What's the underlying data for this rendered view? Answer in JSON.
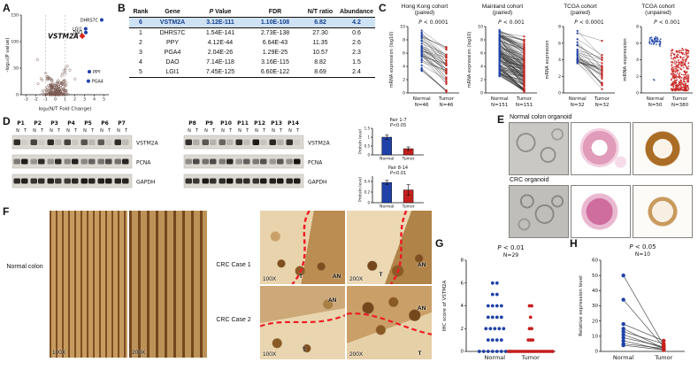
{
  "colors": {
    "normal": "#1f41a8",
    "tumor": "#c5201d",
    "highlight_row_bg": "#cfe2f4",
    "accent_red": "#e02318",
    "dashed_line": "#ed1c24"
  },
  "panels": {
    "a": "A",
    "b": "B",
    "c": "C",
    "d": "D",
    "e": "E",
    "f": "F",
    "g": "G",
    "h": "H"
  },
  "table": {
    "columns": [
      "Rank",
      "Gene",
      "P Value",
      "FDR",
      "N/T ratio",
      "Abundance"
    ],
    "rows": [
      {
        "rank": "6",
        "gene": "VSTM2A",
        "p": "3.12E-111",
        "fdr": "1.10E-108",
        "ratio": "6.82",
        "abundance": "4.2",
        "highlight": true
      },
      {
        "rank": "1",
        "gene": "DHRS7C",
        "p": "1.54E-141",
        "fdr": "2.73E-138",
        "ratio": "27.30",
        "abundance": "0.6",
        "highlight": false
      },
      {
        "rank": "2",
        "gene": "PPY",
        "p": "4.12E-44",
        "fdr": "6.64E-43",
        "ratio": "11.35",
        "abundance": "2.6",
        "highlight": false
      },
      {
        "rank": "3",
        "gene": "PGA4",
        "p": "2.04E-26",
        "fdr": "1.29E-25",
        "ratio": "10.57",
        "abundance": "2.3",
        "highlight": false
      },
      {
        "rank": "4",
        "gene": "DAO",
        "p": "7.14E-118",
        "fdr": "3.16E-115",
        "ratio": "8.82",
        "abundance": "1.5",
        "highlight": false
      },
      {
        "rank": "5",
        "gene": "LGI1",
        "p": "7.45E-125",
        "fdr": "6.60E-122",
        "ratio": "8.69",
        "abundance": "2.4",
        "highlight": false
      }
    ]
  },
  "chart_data": [
    {
      "id": "volcano",
      "type": "volcano",
      "panel": "A",
      "xlabel": "log₂(N/T Fold Change)",
      "ylabel": "-log₁₀(P value)",
      "xlim": [
        -3.5,
        5.5
      ],
      "ylim": [
        0,
        150
      ],
      "xticks": [
        -3,
        -2,
        -1,
        0,
        1,
        2,
        3,
        4,
        5
      ],
      "yticks": [
        0,
        50,
        100,
        150
      ],
      "vlines": [
        -1,
        1
      ],
      "labeled_points": [
        {
          "gene": "DHRS7C",
          "x": 4.77,
          "y": 140.8,
          "color": "#1f41a8",
          "side": "left",
          "marker": "circle",
          "emphasis": false
        },
        {
          "gene": "LGI1",
          "x": 3.12,
          "y": 124.1,
          "color": "#1f41a8",
          "side": "left",
          "marker": "circle",
          "emphasis": false
        },
        {
          "gene": "DAO",
          "x": 3.14,
          "y": 117.1,
          "color": "#1f41a8",
          "side": "left",
          "marker": "circle",
          "emphasis": false
        },
        {
          "gene": "VSTM2A",
          "x": 2.77,
          "y": 110.5,
          "color": "#e02318",
          "side": "left",
          "marker": "diamond",
          "emphasis": true
        },
        {
          "gene": "PPY",
          "x": 3.5,
          "y": 43.4,
          "color": "#1f41a8",
          "side": "right",
          "marker": "circle",
          "emphasis": false
        },
        {
          "gene": "PGA4",
          "x": 3.4,
          "y": 25.7,
          "color": "#1f41a8",
          "side": "right",
          "marker": "circle",
          "emphasis": false
        }
      ],
      "cloud": {
        "n": 240,
        "seed": 7
      }
    },
    {
      "id": "c1",
      "type": "paired",
      "panel": "C",
      "title_lines": [
        "Hong Kong cohort",
        "(paired)"
      ],
      "p_label": "P < 0.0001",
      "ylabel": "mRNA expression (log10)",
      "ylim": [
        0,
        10
      ],
      "yticks": [
        0,
        2,
        4,
        6,
        8,
        10
      ],
      "groups": [
        "Normal",
        "Tumor"
      ],
      "n_labels": [
        "N=46",
        "N=46"
      ],
      "n": 46,
      "seed": 11,
      "normal_range": [
        3,
        9.5
      ],
      "drop_range": [
        1,
        5
      ]
    },
    {
      "id": "c2",
      "type": "paired",
      "panel": "C",
      "title_lines": [
        "Mainland cohort",
        "(paired)"
      ],
      "p_label": "P < 0.001",
      "ylabel": "mRNA expression (log10)",
      "ylim": [
        0,
        10
      ],
      "yticks": [
        0,
        2,
        4,
        6,
        8,
        10
      ],
      "groups": [
        "Normal",
        "Tumor"
      ],
      "n_labels": [
        "N=151",
        "N=151"
      ],
      "n": 151,
      "seed": 12,
      "normal_range": [
        2.5,
        9.5
      ],
      "drop_range": [
        0.5,
        5
      ]
    },
    {
      "id": "c3",
      "type": "paired",
      "panel": "C",
      "title_lines": [
        "TCGA cohort",
        "(paired)"
      ],
      "p_label": "P < 0.0001",
      "ylabel": "mRNA expression",
      "ylim": [
        0,
        8
      ],
      "yticks": [
        0,
        2,
        4,
        6,
        8
      ],
      "groups": [
        "Normal",
        "Tumor"
      ],
      "n_labels": [
        "N=32",
        "N=32"
      ],
      "n": 32,
      "seed": 13,
      "normal_range": [
        3.5,
        7.5
      ],
      "drop_range": [
        0.5,
        4
      ]
    },
    {
      "id": "c4",
      "type": "unpaired",
      "panel": "C",
      "title_lines": [
        "TCGA cohort",
        "(unpaired)"
      ],
      "p_label": "P < 0.001",
      "ylabel": "mRNA expression",
      "ylim": [
        0,
        8
      ],
      "yticks": [
        0,
        2,
        4,
        6,
        8
      ],
      "groups": [
        "Normal",
        "Tumor"
      ],
      "n_labels": [
        "N=50",
        "N=380"
      ],
      "counts": [
        50,
        380
      ],
      "seed": 14
    },
    {
      "id": "bar0",
      "type": "bars",
      "panel": "D",
      "title_lines": [
        "Pair 1-7",
        "P<0.05"
      ],
      "ylabel": "Protein level",
      "categories": [
        "Normal",
        "Tumor"
      ],
      "values": [
        1.0,
        0.35
      ],
      "errors": [
        0.13,
        0.1
      ],
      "ylim": [
        0,
        1.5
      ],
      "yticks": [
        0,
        0.5,
        1,
        1.5
      ]
    },
    {
      "id": "bar1",
      "type": "bars",
      "panel": "D",
      "title_lines": [
        "Pair 8-14",
        "P<0.01"
      ],
      "ylabel": "Protein level",
      "categories": [
        "Normal",
        "Tumor"
      ],
      "values": [
        0.38,
        0.24
      ],
      "errors": [
        0.04,
        0.1
      ],
      "ylim": [
        0,
        0.5
      ],
      "yticks": [
        0,
        0.2,
        0.4
      ]
    },
    {
      "id": "gplot",
      "type": "dots",
      "panel": "G",
      "p_label": "P < 0.01",
      "n_label": "N=29",
      "ylabel": "IHC score of VSTM2A",
      "ylim": [
        0,
        8
      ],
      "yticks": [
        0,
        2,
        4,
        6,
        8
      ],
      "groups": [
        {
          "label": "Normal",
          "color": "#1f41a8",
          "spacing": 5,
          "values": [
            6,
            6,
            5,
            5,
            4,
            4,
            4,
            4,
            3,
            3,
            3,
            3,
            2,
            2,
            2,
            2,
            2,
            1,
            1,
            1,
            1,
            0,
            0,
            0,
            0,
            0,
            0,
            0,
            0
          ]
        },
        {
          "label": "Tumor",
          "color": "#c5201d",
          "spacing": 2.5,
          "values": [
            4,
            4,
            3,
            2,
            2,
            1,
            1,
            1,
            0,
            0,
            0,
            0,
            0,
            0,
            0,
            0,
            0,
            0,
            0,
            0,
            0,
            0,
            0,
            0,
            0,
            0,
            0,
            0,
            0
          ]
        }
      ]
    },
    {
      "id": "hplot",
      "type": "paired",
      "panel": "H",
      "p_label": "P < 0.05",
      "n_label": "N=10",
      "ylabel": "Relative expression level",
      "ylim": [
        0,
        60
      ],
      "yticks": [
        0,
        10,
        20,
        30,
        40,
        50,
        60
      ],
      "groups": [
        "Normal",
        "Tumor"
      ],
      "values": {
        "normal": [
          50,
          34,
          18,
          15,
          13,
          11,
          9,
          7,
          5,
          4
        ],
        "tumor": [
          4,
          3,
          7,
          2,
          5,
          2,
          3,
          1,
          2,
          1
        ]
      }
    }
  ],
  "western": {
    "row_labels": [
      "VSTM2A",
      "PCNA",
      "GAPDH"
    ],
    "lane_labels": [
      "N",
      "T"
    ],
    "groups": [
      {
        "id": "blot0",
        "pairs": [
          "P1",
          "P2",
          "P3",
          "P4",
          "P5",
          "P6",
          "P7"
        ],
        "seed": 3
      },
      {
        "id": "blot1",
        "pairs": [
          "P8",
          "P9",
          "P10",
          "P11",
          "P12",
          "P13",
          "P14"
        ],
        "seed": 5
      }
    ]
  },
  "organoids": {
    "rows": [
      {
        "label": "Normal colon organoid"
      },
      {
        "label": "CRC organoid"
      }
    ]
  },
  "ihc": {
    "normal_label": "Normal colon",
    "normal_images": [
      {
        "mag": "100X"
      },
      {
        "mag": "200X"
      }
    ],
    "cases": [
      {
        "label": "CRC Case 1",
        "images": [
          {
            "mag": "100X",
            "regions": [
              "T",
              "AN"
            ]
          },
          {
            "mag": "200X",
            "regions": [
              "T",
              "AN"
            ]
          }
        ]
      },
      {
        "label": "CRC Case 2",
        "images": [
          {
            "mag": "100X",
            "regions": [
              "AN",
              "T"
            ]
          },
          {
            "mag": "200X",
            "regions": [
              "AN",
              "T"
            ]
          }
        ]
      }
    ]
  }
}
